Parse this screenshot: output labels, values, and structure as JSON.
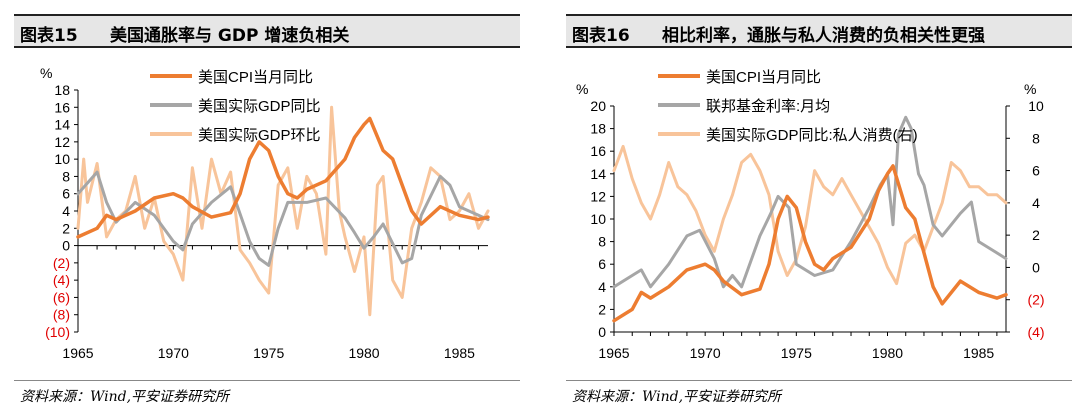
{
  "charts": [
    {
      "figure_number": "图表15",
      "title": "美国通胀率与 GDP 增速负相关",
      "source": "资料来源：Wind,平安证券研究所"
    },
    {
      "figure_number": "图表16",
      "title": "相比利率，通胀与私人消费的负相关性更强",
      "source": "资料来源：Wind,平安证券研究所"
    }
  ],
  "colors": {
    "cpi": "#ed7d31",
    "gray": "#a6a6a6",
    "light": "#f8c49a",
    "neg": "#e00000"
  },
  "chart_data": [
    {
      "type": "line",
      "title": "美国通胀率与 GDP 增速负相关",
      "y_unit_label": "%",
      "ylim": [
        -10,
        18
      ],
      "yticks": [
        -10,
        -8,
        -6,
        -4,
        -2,
        0,
        2,
        4,
        6,
        8,
        10,
        12,
        14,
        16,
        18
      ],
      "ytick_labels": [
        "(10)",
        "(8)",
        "(6)",
        "(4)",
        "(2)",
        "0",
        "2",
        "4",
        "6",
        "8",
        "10",
        "12",
        "14",
        "16",
        "18"
      ],
      "xlim": [
        1965,
        1986.5
      ],
      "xticks": [
        1965,
        1970,
        1975,
        1980,
        1985
      ],
      "xtick_labels": [
        "1965",
        "1970",
        "1975",
        "1980",
        "1985"
      ],
      "legend_position": "top-center",
      "series": [
        {
          "name": "美国CPI当月同比",
          "color_key": "cpi",
          "axis": "left",
          "x": [
            1965,
            1966,
            1966.5,
            1967,
            1968,
            1969,
            1970,
            1970.5,
            1971,
            1972,
            1973,
            1973.5,
            1974,
            1974.5,
            1975,
            1975.5,
            1976,
            1976.5,
            1977,
            1978,
            1979,
            1979.5,
            1980,
            1980.3,
            1981,
            1981.5,
            1982,
            1982.5,
            1983,
            1984,
            1985,
            1986,
            1986.5
          ],
          "y": [
            1.0,
            2.0,
            3.5,
            3.0,
            4.0,
            5.5,
            6.0,
            5.5,
            4.5,
            3.3,
            3.8,
            6.0,
            10.0,
            12.0,
            11.0,
            8.0,
            6.0,
            5.5,
            6.5,
            7.5,
            10.0,
            12.5,
            14.0,
            14.7,
            11.0,
            10.0,
            7.0,
            4.0,
            2.5,
            4.5,
            3.5,
            3.0,
            3.3
          ]
        },
        {
          "name": "美国实际GDP同比",
          "color_key": "gray",
          "axis": "left",
          "x": [
            1965,
            1966,
            1966.5,
            1967,
            1968,
            1969,
            1970,
            1970.5,
            1971,
            1972,
            1973,
            1974,
            1974.5,
            1975,
            1975.5,
            1976,
            1977,
            1978,
            1979,
            1979.5,
            1980,
            1980.5,
            1981,
            1982,
            1982.5,
            1983,
            1984,
            1984.5,
            1985,
            1986,
            1986.5
          ],
          "y": [
            6.0,
            8.5,
            5.0,
            2.7,
            5.0,
            3.5,
            0.5,
            -0.5,
            2.5,
            5.0,
            6.8,
            0.5,
            -1.5,
            -2.3,
            2.0,
            5.0,
            5.0,
            5.5,
            3.2,
            1.5,
            -0.3,
            1.0,
            2.5,
            -2.0,
            -1.5,
            3.5,
            8.0,
            7.0,
            4.5,
            3.5,
            3.0
          ]
        },
        {
          "name": "美国实际GDP环比",
          "color_key": "light",
          "axis": "left",
          "x": [
            1965,
            1965.3,
            1965.5,
            1966,
            1966.5,
            1967,
            1967.5,
            1968,
            1968.5,
            1969,
            1969.5,
            1970,
            1970.5,
            1971,
            1971.5,
            1972,
            1972.5,
            1973,
            1973.5,
            1974,
            1974.5,
            1975,
            1975.5,
            1976,
            1976.5,
            1977,
            1977.5,
            1978,
            1978.3,
            1978.7,
            1979,
            1979.5,
            1980,
            1980.3,
            1980.7,
            1981,
            1981.5,
            1982,
            1982.5,
            1983,
            1983.5,
            1984,
            1984.5,
            1985,
            1985.5,
            1986,
            1986.5
          ],
          "y": [
            2.0,
            10.0,
            5.0,
            9.5,
            1.0,
            3.0,
            4.0,
            8.0,
            2.0,
            5.5,
            0.5,
            -1.0,
            -4.0,
            9.0,
            2.0,
            10.0,
            6.0,
            8.5,
            -0.5,
            -2.0,
            -4.0,
            -5.5,
            7.0,
            9.0,
            2.0,
            8.0,
            6.0,
            -1.0,
            16.0,
            4.0,
            1.0,
            -3.0,
            1.0,
            -8.0,
            7.0,
            8.0,
            -4.0,
            -6.0,
            2.0,
            5.0,
            9.0,
            8.0,
            3.0,
            4.0,
            6.0,
            2.0,
            4.0
          ]
        }
      ]
    },
    {
      "type": "line",
      "title": "相比利率，通胀与私人消费的负相关性更强",
      "y_unit_label": "%",
      "y2_unit_label": "%",
      "ylim": [
        0,
        20
      ],
      "yticks": [
        0,
        2,
        4,
        6,
        8,
        10,
        12,
        14,
        16,
        18,
        20
      ],
      "ytick_labels": [
        "0",
        "2",
        "4",
        "6",
        "8",
        "10",
        "12",
        "14",
        "16",
        "18",
        "20"
      ],
      "y2lim": [
        -4,
        10
      ],
      "y2ticks": [
        -4,
        -2,
        0,
        2,
        4,
        6,
        8,
        10
      ],
      "y2tick_labels": [
        "(4)",
        "(2)",
        "0",
        "2",
        "4",
        "6",
        "8",
        "10"
      ],
      "xlim": [
        1965,
        1986.5
      ],
      "xticks": [
        1965,
        1970,
        1975,
        1980,
        1985
      ],
      "xtick_labels": [
        "1965",
        "1970",
        "1975",
        "1980",
        "1985"
      ],
      "legend_position": "top-center",
      "series": [
        {
          "name": "美国CPI当月同比",
          "color_key": "cpi",
          "axis": "left",
          "x": [
            1965,
            1966,
            1966.5,
            1967,
            1968,
            1969,
            1970,
            1970.5,
            1971,
            1972,
            1973,
            1973.5,
            1974,
            1974.5,
            1975,
            1975.5,
            1976,
            1976.5,
            1977,
            1978,
            1979,
            1979.5,
            1980,
            1980.3,
            1981,
            1981.5,
            1982,
            1982.5,
            1983,
            1984,
            1985,
            1986,
            1986.5
          ],
          "y": [
            1.0,
            2.0,
            3.5,
            3.0,
            4.0,
            5.5,
            6.0,
            5.5,
            4.5,
            3.3,
            3.8,
            6.0,
            10.0,
            12.0,
            11.0,
            8.0,
            6.0,
            5.5,
            6.5,
            7.5,
            10.0,
            12.5,
            14.0,
            14.7,
            11.0,
            10.0,
            7.0,
            4.0,
            2.5,
            4.5,
            3.5,
            3.0,
            3.3
          ]
        },
        {
          "name": "联邦基金利率:月均",
          "color_key": "gray",
          "axis": "left",
          "x": [
            1965,
            1966,
            1966.5,
            1967,
            1968,
            1969,
            1969.7,
            1970.5,
            1971,
            1971.5,
            1972,
            1973,
            1973.6,
            1974,
            1974.6,
            1975,
            1976,
            1977,
            1978,
            1979,
            1979.6,
            1980,
            1980.3,
            1980.6,
            1981,
            1981.3,
            1981.7,
            1982,
            1982.5,
            1983,
            1984,
            1984.6,
            1985,
            1986,
            1986.5
          ],
          "y": [
            4.0,
            5.0,
            5.5,
            4.0,
            6.0,
            8.5,
            9.0,
            6.5,
            4.0,
            5.0,
            4.0,
            8.5,
            10.5,
            12.0,
            11.0,
            6.0,
            5.0,
            5.5,
            8.0,
            11.0,
            13.0,
            14.0,
            9.5,
            17.5,
            19.0,
            18.0,
            14.0,
            13.0,
            9.5,
            8.5,
            10.5,
            11.5,
            8.0,
            7.0,
            6.5
          ]
        },
        {
          "name": "美国实际GDP同比:私人消费(右)",
          "color_key": "light",
          "axis": "right",
          "x": [
            1965,
            1965.5,
            1966,
            1966.5,
            1967,
            1967.5,
            1968,
            1968.5,
            1969,
            1969.5,
            1970,
            1970.5,
            1971,
            1971.5,
            1972,
            1972.5,
            1973,
            1973.5,
            1974,
            1974.5,
            1975,
            1975.5,
            1976,
            1976.5,
            1977,
            1977.5,
            1978,
            1978.5,
            1979,
            1979.5,
            1980,
            1980.5,
            1981,
            1981.5,
            1982,
            1982.5,
            1983,
            1983.5,
            1984,
            1984.5,
            1985,
            1985.5,
            1986,
            1986.5
          ],
          "y": [
            6.0,
            7.5,
            5.5,
            4.0,
            3.0,
            4.5,
            6.5,
            5.0,
            4.5,
            3.5,
            2.0,
            1.0,
            3.0,
            4.5,
            6.5,
            7.0,
            6.0,
            4.5,
            1.0,
            -0.5,
            0.5,
            2.5,
            6.0,
            5.0,
            4.5,
            5.5,
            4.5,
            3.5,
            2.5,
            1.5,
            0.0,
            -1.0,
            1.5,
            2.0,
            1.0,
            2.5,
            4.0,
            6.5,
            6.0,
            5.0,
            5.0,
            4.5,
            4.5,
            4.0
          ]
        }
      ]
    }
  ]
}
